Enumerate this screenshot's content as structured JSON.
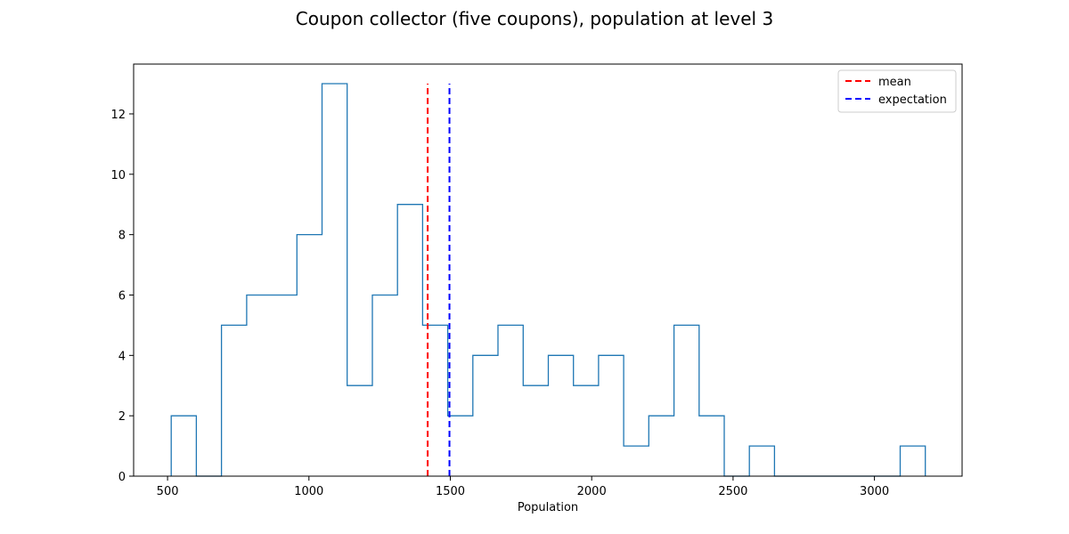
{
  "chart_data": {
    "type": "histogram-step",
    "title": "Coupon collector (five coupons), population at level 3",
    "xlabel": "Population",
    "ylabel": "",
    "xlim": [
      380,
      3310
    ],
    "ylim": [
      0,
      13.65
    ],
    "x_ticks": [
      500,
      1000,
      1500,
      2000,
      2500,
      3000
    ],
    "y_ticks": [
      0,
      2,
      4,
      6,
      8,
      10,
      12
    ],
    "bin_edges": [
      513,
      601.9,
      690.8,
      779.7,
      868.6,
      957.5,
      1046.4,
      1135.3,
      1224.2,
      1313.1,
      1402,
      1490.9,
      1579.8,
      1668.7,
      1757.6,
      1846.5,
      1935.4,
      2024.3,
      2113.2,
      2202.1,
      2291,
      2379.9,
      2468.8,
      2557.7,
      2646.6,
      2735.5,
      2824.4,
      2913.3,
      3002.2,
      3091.1,
      3180
    ],
    "counts": [
      2,
      0,
      5,
      6,
      6,
      8,
      13,
      3,
      6,
      9,
      5,
      2,
      4,
      5,
      3,
      4,
      3,
      4,
      1,
      2,
      5,
      2,
      0,
      1,
      0,
      0,
      0,
      0,
      0,
      1
    ],
    "series": [
      {
        "name": "mean",
        "type": "vline",
        "x": 1420,
        "ymax": 13,
        "color": "#ff0000",
        "dashed": true
      },
      {
        "name": "expectation",
        "type": "vline",
        "x": 1497,
        "ymax": 13,
        "color": "#0000ff",
        "dashed": true
      }
    ],
    "histogram_color": "#1f77b4",
    "legend_position": "top-right",
    "grid": false
  }
}
